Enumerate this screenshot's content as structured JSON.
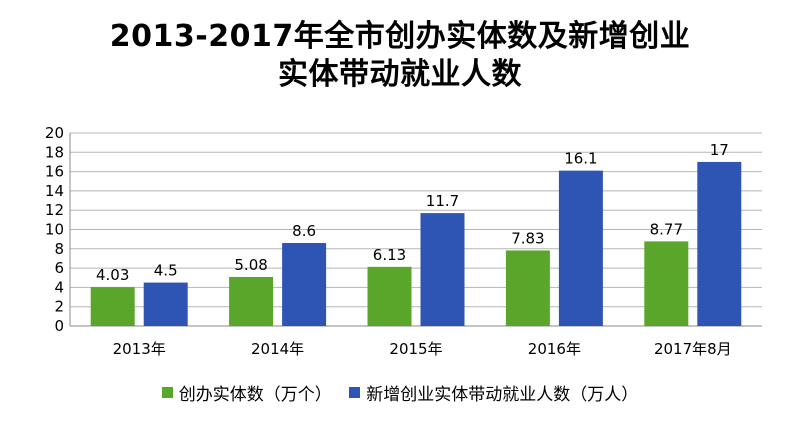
{
  "chart_data": {
    "type": "bar",
    "title_lines": [
      "2013-2017年全市创办实体数及新增创业",
      "实体带动就业人数"
    ],
    "categories": [
      "2013年",
      "2014年",
      "2015年",
      "2016年",
      "2017年8月"
    ],
    "series": [
      {
        "name": "创办实体数（万个）",
        "color": "#5aa62a",
        "values": [
          4.03,
          5.08,
          6.13,
          7.83,
          8.77
        ],
        "labels": [
          "4.03",
          "5.08",
          "6.13",
          "7.83",
          "8.77"
        ]
      },
      {
        "name": "新增创业实体带动就业人数（万人）",
        "color": "#2f55b4",
        "values": [
          4.5,
          8.6,
          11.7,
          16.1,
          17
        ],
        "labels": [
          "4.5",
          "8.6",
          "11.7",
          "16.1",
          "17"
        ]
      }
    ],
    "ylim": [
      0,
      20
    ],
    "yticks": [
      0,
      2,
      4,
      6,
      8,
      10,
      12,
      14,
      16,
      18,
      20
    ],
    "grid": true,
    "legend_position": "bottom"
  }
}
